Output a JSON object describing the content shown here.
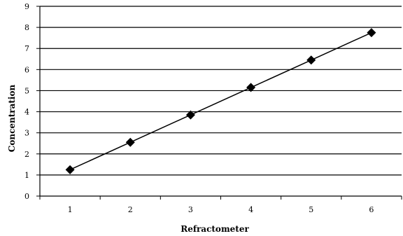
{
  "chart_data": {
    "type": "line",
    "title": "",
    "xlabel": "Refractometer",
    "ylabel": "Concentration",
    "categories": [
      "1",
      "2",
      "3",
      "4",
      "5",
      "6"
    ],
    "series": [
      {
        "values": [
          1.25,
          2.55,
          3.85,
          5.15,
          6.45,
          7.75
        ]
      }
    ],
    "ylim": [
      0,
      9
    ],
    "yticks": [
      "0",
      "1",
      "2",
      "3",
      "4",
      "5",
      "6",
      "7",
      "8",
      "9"
    ],
    "grid": "horizontal",
    "legend": "none",
    "marker": "diamond",
    "line_color": "#000000",
    "marker_color": "#000000"
  }
}
